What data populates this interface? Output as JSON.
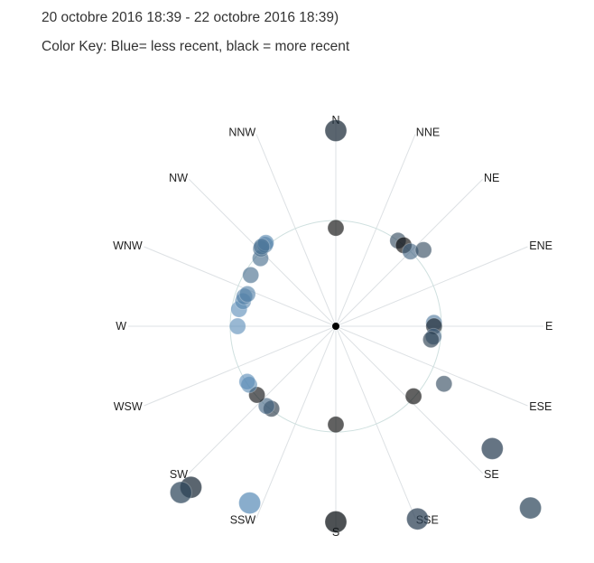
{
  "header": {
    "date_range": "20 octobre 2016 18:39 - 22 octobre 2016 18:39)",
    "color_key": "Color Key: Blue= less recent, black = more recent"
  },
  "chart_data": {
    "type": "scatter",
    "subtype": "polar",
    "directions": [
      "N",
      "NNE",
      "NE",
      "ENE",
      "E",
      "ESE",
      "SE",
      "SSE",
      "S",
      "SSW",
      "SW",
      "WSW",
      "W",
      "WNW",
      "NW",
      "NNW"
    ],
    "grid": true,
    "reference_circle": true,
    "color_scale": {
      "less_recent": "#5b8db8",
      "more_recent": "#000000"
    },
    "points": [
      {
        "angle": 0,
        "r": 1.85,
        "recency": 0.7,
        "size": "large"
      },
      {
        "angle": 0,
        "r": 0.93,
        "recency": 1.0,
        "size": "small"
      },
      {
        "angle": 180,
        "r": 1.85,
        "recency": 0.9,
        "size": "large"
      },
      {
        "angle": 180,
        "r": 0.93,
        "recency": 1.0,
        "size": "small"
      },
      {
        "angle": 36,
        "r": 1.0,
        "recency": 0.5,
        "size": "small"
      },
      {
        "angle": 40,
        "r": 1.0,
        "recency": 1.0,
        "size": "small"
      },
      {
        "angle": 45,
        "r": 1.0,
        "recency": 0.3,
        "size": "small"
      },
      {
        "angle": 49,
        "r": 1.1,
        "recency": 0.5,
        "size": "small"
      },
      {
        "angle": 88,
        "r": 0.93,
        "recency": 0.15,
        "size": "small"
      },
      {
        "angle": 90,
        "r": 0.93,
        "recency": 0.8,
        "size": "small"
      },
      {
        "angle": 96,
        "r": 0.93,
        "recency": 0.3,
        "size": "small"
      },
      {
        "angle": 98,
        "r": 0.91,
        "recency": 0.6,
        "size": "small"
      },
      {
        "angle": 132,
        "r": 0.99,
        "recency": 1.0,
        "size": "small"
      },
      {
        "angle": 118,
        "r": 1.16,
        "recency": 0.5,
        "size": "small"
      },
      {
        "angle": 128,
        "r": 1.88,
        "recency": 0.55,
        "size": "large"
      },
      {
        "angle": 133,
        "r": 2.52,
        "recency": 0.5,
        "size": "large"
      },
      {
        "angle": 157,
        "r": 1.98,
        "recency": 0.55,
        "size": "large"
      },
      {
        "angle": 206,
        "r": 1.86,
        "recency": 0.0,
        "size": "large"
      },
      {
        "angle": 222,
        "r": 2.05,
        "recency": 0.7,
        "size": "large"
      },
      {
        "angle": 223,
        "r": 2.15,
        "recency": 0.5,
        "size": "large"
      },
      {
        "angle": 218,
        "r": 0.99,
        "recency": 0.65,
        "size": "small"
      },
      {
        "angle": 221,
        "r": 1.0,
        "recency": 0.3,
        "size": "small"
      },
      {
        "angle": 229,
        "r": 0.99,
        "recency": 0.95,
        "size": "small"
      },
      {
        "angle": 236,
        "r": 0.99,
        "recency": 0.05,
        "size": "small"
      },
      {
        "angle": 238,
        "r": 0.99,
        "recency": 0.0,
        "size": "small"
      },
      {
        "angle": 270,
        "r": 0.93,
        "recency": 0.0,
        "size": "small"
      },
      {
        "angle": 280,
        "r": 0.93,
        "recency": 0.0,
        "size": "small"
      },
      {
        "angle": 285,
        "r": 0.91,
        "recency": 0.05,
        "size": "small"
      },
      {
        "angle": 288,
        "r": 0.91,
        "recency": 0.1,
        "size": "small"
      },
      {
        "angle": 290,
        "r": 0.89,
        "recency": 0.1,
        "size": "small"
      },
      {
        "angle": 301,
        "r": 0.94,
        "recency": 0.25,
        "size": "small"
      },
      {
        "angle": 312,
        "r": 0.96,
        "recency": 0.25,
        "size": "small"
      },
      {
        "angle": 316,
        "r": 1.02,
        "recency": 0.25,
        "size": "small"
      },
      {
        "angle": 319,
        "r": 1.02,
        "recency": 0.15,
        "size": "small"
      },
      {
        "angle": 320,
        "r": 1.03,
        "recency": 0.05,
        "size": "small"
      },
      {
        "angle": 317,
        "r": 1.03,
        "recency": 0.2,
        "size": "small"
      }
    ]
  }
}
